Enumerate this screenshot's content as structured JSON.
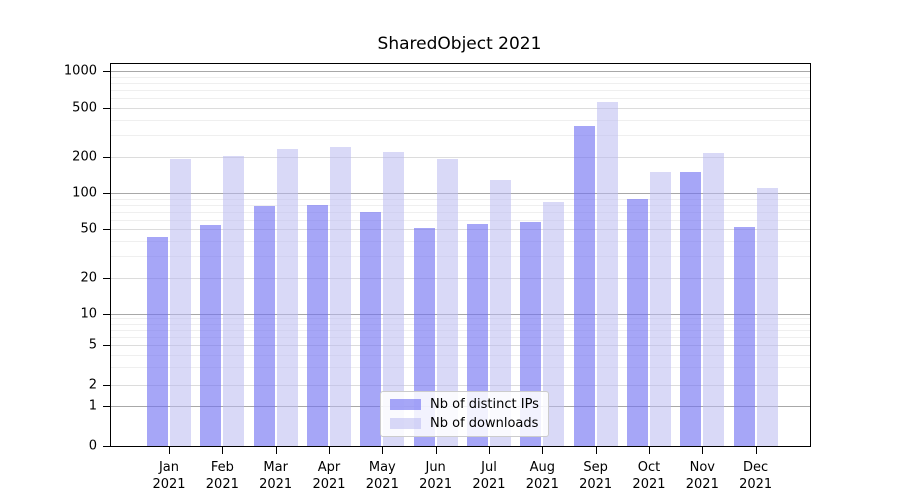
{
  "chart_data": {
    "type": "bar",
    "title": "SharedObject 2021",
    "categories": [
      "Jan 2021",
      "Feb 2021",
      "Mar 2021",
      "Apr 2021",
      "May 2021",
      "Jun 2021",
      "Jul 2021",
      "Aug 2021",
      "Sep 2021",
      "Oct 2021",
      "Nov 2021",
      "Dec 2021"
    ],
    "series": [
      {
        "name": "Nb of distinct IPs",
        "color": "rgba(111,111,242,0.62)",
        "values": [
          43,
          54,
          78,
          80,
          70,
          51,
          55,
          57,
          355,
          90,
          149,
          52
        ]
      },
      {
        "name": "Nb of downloads",
        "color": "rgba(186,186,240,0.55)",
        "values": [
          190,
          202,
          232,
          240,
          220,
          192,
          128,
          85,
          555,
          150,
          216,
          110
        ]
      }
    ],
    "xlabel": "",
    "ylabel": "",
    "yaxis": {
      "scale": "log-with-zero",
      "ticks": [
        1000,
        500,
        200,
        100,
        50,
        20,
        10,
        5,
        2,
        1,
        0
      ],
      "ylim": [
        0,
        1000
      ]
    },
    "grid": true,
    "legend_position": "bottom-center"
  }
}
